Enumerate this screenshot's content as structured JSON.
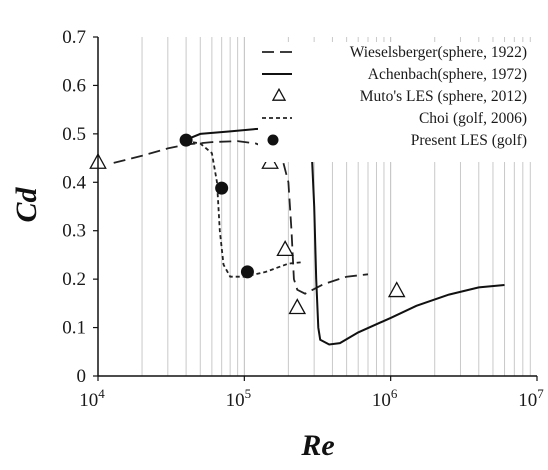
{
  "chart_data": {
    "type": "line",
    "xscale": "log",
    "xlim": [
      10000,
      10000000
    ],
    "ylim": [
      0,
      0.7
    ],
    "xlabel": "Re",
    "ylabel": "Cd",
    "title": "",
    "grid": {
      "x_minor": true,
      "y": false
    },
    "legend_position": "top-right",
    "x_ticks": [
      {
        "value": 10000,
        "base": "10",
        "exp": "4"
      },
      {
        "value": 100000,
        "base": "10",
        "exp": "5"
      },
      {
        "value": 1000000,
        "base": "10",
        "exp": "6"
      },
      {
        "value": 10000000,
        "base": "10",
        "exp": "7"
      }
    ],
    "y_ticks": [
      {
        "value": 0,
        "label": "0"
      },
      {
        "value": 0.1,
        "label": "0.1"
      },
      {
        "value": 0.2,
        "label": "0.2"
      },
      {
        "value": 0.3,
        "label": "0.3"
      },
      {
        "value": 0.4,
        "label": "0.4"
      },
      {
        "value": 0.5,
        "label": "0.5"
      },
      {
        "value": 0.6,
        "label": "0.6"
      },
      {
        "value": 0.7,
        "label": "0.7"
      }
    ],
    "series": [
      {
        "name": "Wieselsberger(sphere, 1922)",
        "style": "long-dash",
        "color": "#222222",
        "points": [
          [
            12800,
            0.44
          ],
          [
            20000,
            0.455
          ],
          [
            30000,
            0.47
          ],
          [
            40000,
            0.478
          ],
          [
            60000,
            0.483
          ],
          [
            90000,
            0.485
          ],
          [
            120000,
            0.48
          ],
          [
            160000,
            0.465
          ],
          [
            185000,
            0.44
          ],
          [
            200000,
            0.4
          ],
          [
            210000,
            0.3
          ],
          [
            218000,
            0.2
          ],
          [
            230000,
            0.178
          ],
          [
            260000,
            0.17
          ],
          [
            350000,
            0.19
          ],
          [
            500000,
            0.205
          ],
          [
            700000,
            0.21
          ]
        ]
      },
      {
        "name": "Achenbach(sphere, 1972)",
        "style": "solid",
        "color": "#111111",
        "points": [
          [
            38000,
            0.485
          ],
          [
            50000,
            0.5
          ],
          [
            80000,
            0.505
          ],
          [
            120000,
            0.51
          ],
          [
            180000,
            0.512
          ],
          [
            230000,
            0.51
          ],
          [
            270000,
            0.49
          ],
          [
            290000,
            0.45
          ],
          [
            300000,
            0.35
          ],
          [
            310000,
            0.2
          ],
          [
            320000,
            0.1
          ],
          [
            330000,
            0.075
          ],
          [
            380000,
            0.065
          ],
          [
            450000,
            0.068
          ],
          [
            600000,
            0.09
          ],
          [
            1000000,
            0.12
          ],
          [
            1500000,
            0.145
          ],
          [
            2500000,
            0.168
          ],
          [
            4000000,
            0.183
          ],
          [
            6000000,
            0.188
          ]
        ]
      },
      {
        "name": "Muto's LES (sphere, 2012)",
        "style": "marker-triangle",
        "color": "#111111",
        "points": [
          [
            10000,
            0.44
          ],
          [
            150000,
            0.44
          ],
          [
            190000,
            0.26
          ],
          [
            230000,
            0.14
          ],
          [
            1100000,
            0.175
          ]
        ]
      },
      {
        "name": "Choi (golf, 2006)",
        "style": "short-dash",
        "color": "#222222",
        "points": [
          [
            40000,
            0.485
          ],
          [
            50000,
            0.48
          ],
          [
            60000,
            0.46
          ],
          [
            65000,
            0.4
          ],
          [
            68000,
            0.3
          ],
          [
            72000,
            0.23
          ],
          [
            80000,
            0.205
          ],
          [
            100000,
            0.205
          ],
          [
            140000,
            0.215
          ],
          [
            200000,
            0.232
          ],
          [
            250000,
            0.235
          ]
        ]
      },
      {
        "name": "Present LES (golf)",
        "style": "marker-filled-circle",
        "color": "#111111",
        "points": [
          [
            40000,
            0.487
          ],
          [
            70000,
            0.388
          ],
          [
            105000,
            0.215
          ]
        ]
      }
    ]
  }
}
